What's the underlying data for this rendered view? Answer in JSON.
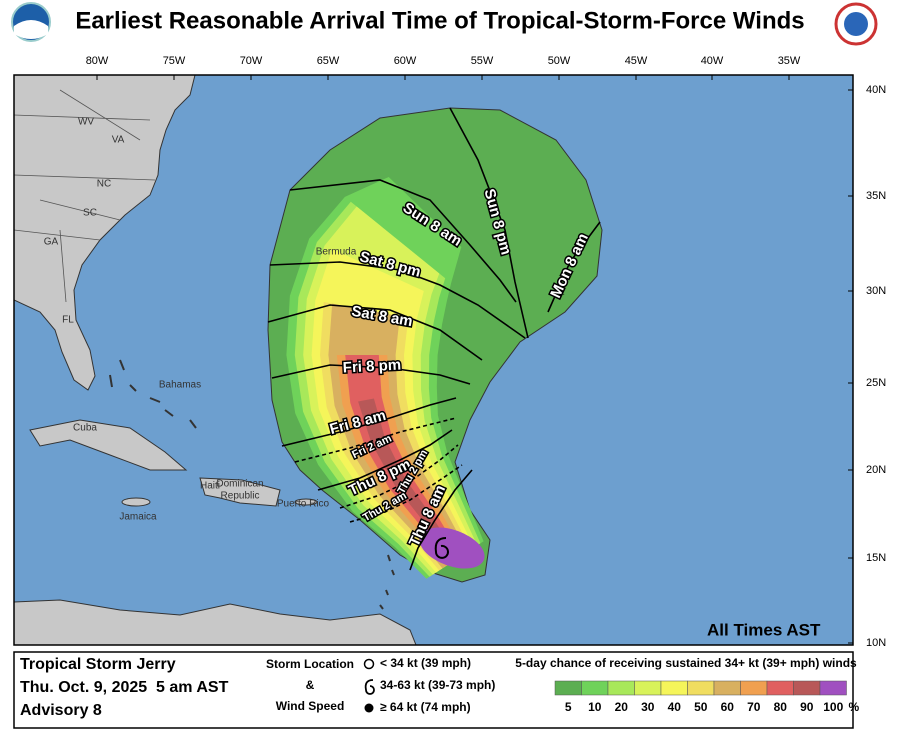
{
  "title": "Earliest Reasonable Arrival Time of Tropical-Storm-Force Winds",
  "map": {
    "longitude_labels": [
      "80W",
      "75W",
      "70W",
      "65W",
      "60W",
      "55W",
      "50W",
      "45W",
      "40W",
      "35W"
    ],
    "latitude_labels": [
      "40N",
      "35N",
      "30N",
      "25N",
      "20N",
      "15N",
      "10N"
    ],
    "place_labels": [
      "WV",
      "VA",
      "NC",
      "SC",
      "GA",
      "FL",
      "Bahamas",
      "Cuba",
      "Haiti",
      "Dominican",
      "Republic",
      "Jamaica",
      "Puerto Rico",
      "Bermuda"
    ],
    "arrival_time_labels": [
      "Sun 8 pm",
      "Sun 8 am",
      "Mon 8 am",
      "Sat 8 pm",
      "Sat 8 am",
      "Fri 8 pm",
      "Fri 8 am",
      "Fri 2 am",
      "Thu 8 pm",
      "Thu 2 pm",
      "Thu 2 am",
      "Thu 8 am"
    ],
    "note": "All Times AST"
  },
  "legend": {
    "storm_name": "Tropical Storm Jerry",
    "issued": "Thu. Oct. 9, 2025  5 am AST",
    "advisory": "Advisory 8",
    "storm_location": "Storm Location",
    "ampersand": "&",
    "wind_speed": "Wind Speed",
    "symbols": [
      "< 34 kt (39 mph)",
      "34-63 kt (39-73 mph)",
      "≥ 64 kt (74 mph)"
    ],
    "colorbar_title": "5-day chance of receiving sustained 34+ kt (39+ mph) winds",
    "colorbar_labels": [
      5,
      10,
      20,
      30,
      40,
      50,
      60,
      70,
      80,
      90,
      100
    ],
    "colorbar_unit": "%"
  }
}
